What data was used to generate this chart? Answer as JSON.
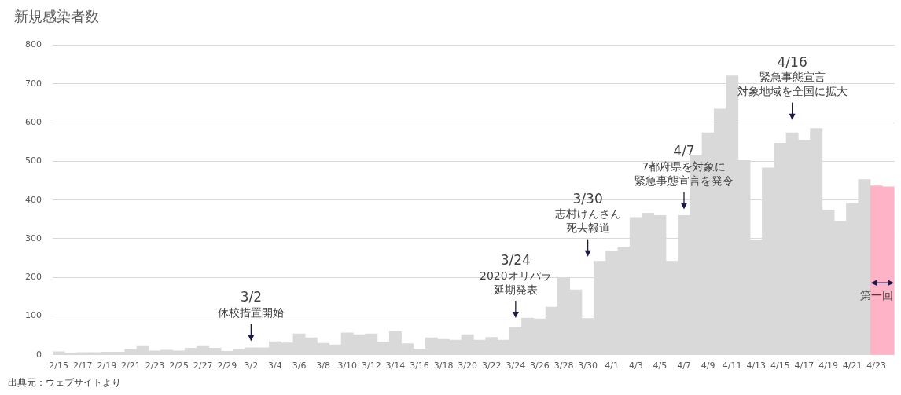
{
  "chart_data": {
    "type": "bar",
    "title": "新規感染者数",
    "categories": [
      "2/15",
      null,
      "2/17",
      null,
      "2/19",
      null,
      "2/21",
      null,
      "2/23",
      null,
      "2/25",
      null,
      "2/27",
      null,
      "2/29",
      null,
      "3/2",
      null,
      "3/4",
      null,
      "3/6",
      null,
      "3/8",
      null,
      "3/10",
      null,
      "3/12",
      null,
      "3/14",
      null,
      "3/16",
      null,
      "3/18",
      null,
      "3/20",
      null,
      "3/22",
      null,
      "3/24",
      null,
      "3/26",
      null,
      "3/28",
      null,
      "3/30",
      null,
      "4/1",
      null,
      "4/3",
      null,
      "4/5",
      null,
      "4/7",
      null,
      "4/9",
      null,
      "4/11",
      null,
      "4/13",
      null,
      "4/15",
      null,
      "4/17",
      null,
      "4/19",
      null,
      "4/21",
      null,
      "4/23",
      null
    ],
    "values": [
      8,
      5,
      6,
      6,
      7,
      7,
      14,
      24,
      10,
      12,
      10,
      17,
      24,
      17,
      9,
      13,
      18,
      18,
      34,
      31,
      54,
      44,
      30,
      26,
      57,
      52,
      54,
      33,
      61,
      29,
      15,
      44,
      40,
      38,
      52,
      38,
      45,
      38,
      70,
      95,
      93,
      123,
      200,
      168,
      94,
      242,
      268,
      279,
      355,
      366,
      360,
      242,
      360,
      515,
      574,
      635,
      721,
      502,
      297,
      483,
      547,
      574,
      555,
      585,
      374,
      345,
      391,
      453,
      437,
      434
    ],
    "colors": [
      "#d9d9d9",
      "#d9d9d9",
      "#d9d9d9",
      "#d9d9d9",
      "#d9d9d9",
      "#d9d9d9",
      "#d9d9d9",
      "#d9d9d9",
      "#d9d9d9",
      "#d9d9d9",
      "#d9d9d9",
      "#d9d9d9",
      "#d9d9d9",
      "#d9d9d9",
      "#d9d9d9",
      "#d9d9d9",
      "#d9d9d9",
      "#d9d9d9",
      "#d9d9d9",
      "#d9d9d9",
      "#d9d9d9",
      "#d9d9d9",
      "#d9d9d9",
      "#d9d9d9",
      "#d9d9d9",
      "#d9d9d9",
      "#d9d9d9",
      "#d9d9d9",
      "#d9d9d9",
      "#d9d9d9",
      "#d9d9d9",
      "#d9d9d9",
      "#d9d9d9",
      "#d9d9d9",
      "#d9d9d9",
      "#d9d9d9",
      "#d9d9d9",
      "#d9d9d9",
      "#d9d9d9",
      "#d9d9d9",
      "#d9d9d9",
      "#d9d9d9",
      "#d9d9d9",
      "#d9d9d9",
      "#d9d9d9",
      "#d9d9d9",
      "#d9d9d9",
      "#d9d9d9",
      "#d9d9d9",
      "#d9d9d9",
      "#d9d9d9",
      "#d9d9d9",
      "#d9d9d9",
      "#d9d9d9",
      "#d9d9d9",
      "#d9d9d9",
      "#d9d9d9",
      "#d9d9d9",
      "#d9d9d9",
      "#d9d9d9",
      "#d9d9d9",
      "#d9d9d9",
      "#d9d9d9",
      "#d9d9d9",
      "#d9d9d9",
      "#d9d9d9",
      "#d9d9d9",
      "#d9d9d9",
      "#ffb3c6",
      "#ffb3c6"
    ],
    "ylim": [
      0,
      800
    ],
    "yticks": [
      0,
      100,
      200,
      300,
      400,
      500,
      600,
      700,
      800
    ],
    "grid": "y",
    "legend": false,
    "annotations": [
      "3/2",
      "休校措置開始",
      "3/24",
      "2020オリパラ延期発表",
      "3/30",
      "志村けんさん死去報道",
      "4/7",
      "7都府県を対象に緊急事態宣言を発令",
      "4/16",
      "緊急事態宣言対象地域を全国に拡大",
      "第一回",
      "出典元：ウェブサイトより"
    ]
  }
}
